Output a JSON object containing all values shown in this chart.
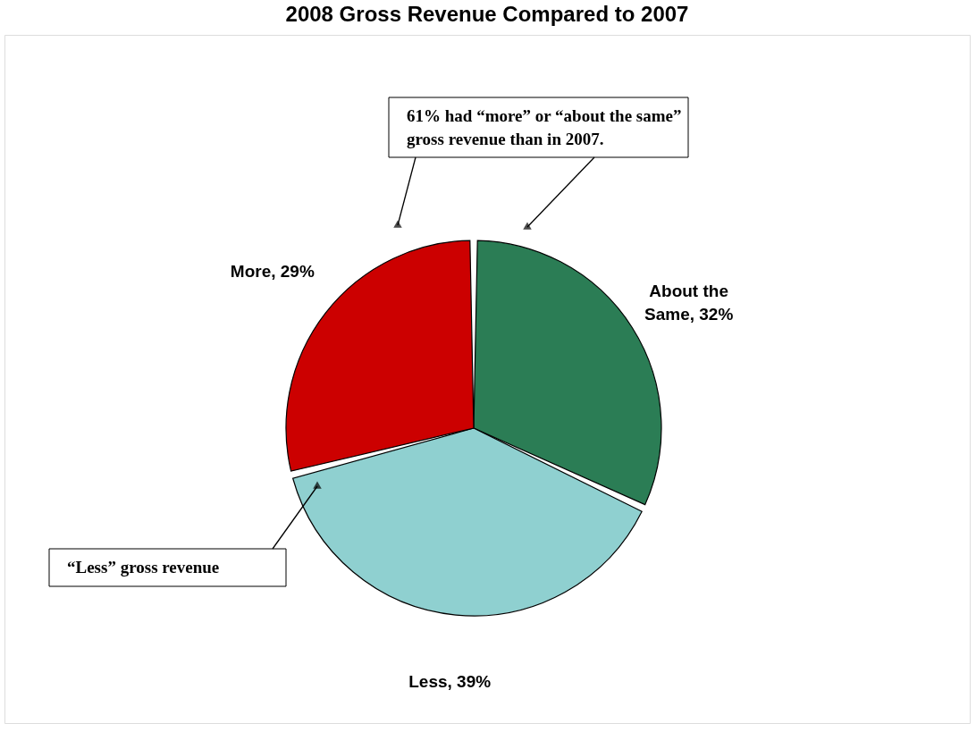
{
  "chart_data": {
    "type": "pie",
    "title": "2008 Gross Revenue Compared to 2007",
    "categories": [
      "About the Same",
      "Less",
      "More"
    ],
    "values": [
      32,
      39,
      29
    ],
    "value_labels": [
      "32%",
      "39%",
      "29%"
    ],
    "colors": [
      "#2b7d55",
      "#8fd0d0",
      "#cc0000"
    ],
    "annotations": [
      "61% had “more” or “about the same” gross revenue than in 2007.",
      "“Less” gross revenue"
    ]
  }
}
